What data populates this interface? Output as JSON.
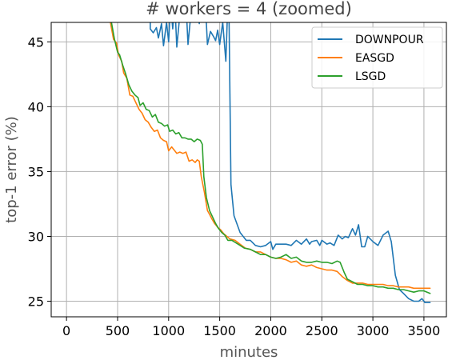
{
  "chart_data": {
    "type": "line",
    "title": "# workers = 4 (zoomed)",
    "xlabel": "minutes",
    "ylabel": "top-1 error (%)",
    "xlim": [
      -150,
      3720
    ],
    "ylim": [
      23.8,
      46.5
    ],
    "xticks": [
      0,
      500,
      1000,
      1500,
      2000,
      2500,
      3000,
      3500
    ],
    "yticks": [
      25,
      30,
      35,
      40,
      45
    ],
    "grid": true,
    "legend": "top-right",
    "series": [
      {
        "name": "DOWNPOUR",
        "color": "#1f77b4",
        "points": [
          [
            400,
            47.0
          ],
          [
            420,
            46.8
          ],
          [
            440,
            46.5
          ],
          [
            440,
            50
          ],
          [
            820,
            50
          ],
          [
            820,
            46.0
          ],
          [
            850,
            45.7
          ],
          [
            880,
            46.1
          ],
          [
            900,
            45.3
          ],
          [
            930,
            46.4
          ],
          [
            950,
            44.7
          ],
          [
            980,
            46.5
          ],
          [
            1000,
            45.0
          ],
          [
            1020,
            48
          ],
          [
            1040,
            46.0
          ],
          [
            1060,
            48
          ],
          [
            1080,
            44.6
          ],
          [
            1100,
            46.3
          ],
          [
            1120,
            48
          ],
          [
            1170,
            48
          ],
          [
            1190,
            44.8
          ],
          [
            1210,
            46.5
          ],
          [
            1230,
            48
          ],
          [
            1280,
            48
          ],
          [
            1300,
            46.4
          ],
          [
            1320,
            48
          ],
          [
            1360,
            48
          ],
          [
            1380,
            44.8
          ],
          [
            1410,
            45.8
          ],
          [
            1440,
            45.4
          ],
          [
            1460,
            45.1
          ],
          [
            1480,
            45.9
          ],
          [
            1500,
            44.8
          ],
          [
            1530,
            46.5
          ],
          [
            1560,
            43.5
          ],
          [
            1580,
            48
          ],
          [
            1590,
            48
          ],
          [
            1600,
            41.0
          ],
          [
            1610,
            34.0
          ],
          [
            1640,
            31.6
          ],
          [
            1700,
            30.3
          ],
          [
            1760,
            29.7
          ],
          [
            1800,
            29.7
          ],
          [
            1850,
            29.3
          ],
          [
            1900,
            29.2
          ],
          [
            1950,
            29.3
          ],
          [
            2000,
            29.6
          ],
          [
            2020,
            29.0
          ],
          [
            2050,
            29.4
          ],
          [
            2100,
            29.4
          ],
          [
            2150,
            29.4
          ],
          [
            2200,
            29.3
          ],
          [
            2250,
            29.7
          ],
          [
            2300,
            29.4
          ],
          [
            2350,
            29.8
          ],
          [
            2380,
            29.4
          ],
          [
            2400,
            29.6
          ],
          [
            2450,
            29.7
          ],
          [
            2480,
            29.3
          ],
          [
            2500,
            29.7
          ],
          [
            2550,
            29.4
          ],
          [
            2580,
            29.5
          ],
          [
            2620,
            29.3
          ],
          [
            2660,
            30.1
          ],
          [
            2700,
            29.8
          ],
          [
            2730,
            30.0
          ],
          [
            2760,
            29.9
          ],
          [
            2800,
            30.6
          ],
          [
            2830,
            30.1
          ],
          [
            2860,
            30.9
          ],
          [
            2890,
            29.2
          ],
          [
            2920,
            29.2
          ],
          [
            2950,
            30.0
          ],
          [
            3000,
            29.6
          ],
          [
            3050,
            29.3
          ],
          [
            3100,
            30.1
          ],
          [
            3150,
            30.4
          ],
          [
            3180,
            29.6
          ],
          [
            3220,
            27.0
          ],
          [
            3260,
            25.9
          ],
          [
            3300,
            25.6
          ],
          [
            3350,
            25.2
          ],
          [
            3400,
            25.0
          ],
          [
            3450,
            25.0
          ],
          [
            3480,
            25.2
          ],
          [
            3510,
            24.9
          ],
          [
            3560,
            24.9
          ]
        ]
      },
      {
        "name": "EASGD",
        "color": "#ff7f0e",
        "points": [
          [
            400,
            47.0
          ],
          [
            430,
            46.5
          ],
          [
            460,
            45.2
          ],
          [
            490,
            44.9
          ],
          [
            510,
            44.0
          ],
          [
            540,
            43.5
          ],
          [
            560,
            42.6
          ],
          [
            590,
            42.2
          ],
          [
            620,
            40.9
          ],
          [
            650,
            40.8
          ],
          [
            680,
            40.3
          ],
          [
            710,
            39.8
          ],
          [
            740,
            39.5
          ],
          [
            770,
            39.0
          ],
          [
            800,
            38.8
          ],
          [
            830,
            38.4
          ],
          [
            860,
            38.1
          ],
          [
            890,
            38.2
          ],
          [
            920,
            37.6
          ],
          [
            950,
            37.4
          ],
          [
            980,
            37.3
          ],
          [
            1000,
            36.6
          ],
          [
            1030,
            36.9
          ],
          [
            1060,
            36.6
          ],
          [
            1080,
            36.4
          ],
          [
            1110,
            36.5
          ],
          [
            1140,
            36.4
          ],
          [
            1170,
            36.5
          ],
          [
            1200,
            35.8
          ],
          [
            1230,
            35.9
          ],
          [
            1260,
            35.7
          ],
          [
            1280,
            35.9
          ],
          [
            1300,
            35.8
          ],
          [
            1320,
            34.6
          ],
          [
            1350,
            33.4
          ],
          [
            1380,
            32.0
          ],
          [
            1400,
            31.7
          ],
          [
            1420,
            31.4
          ],
          [
            1450,
            31.0
          ],
          [
            1480,
            30.7
          ],
          [
            1510,
            30.5
          ],
          [
            1540,
            30.2
          ],
          [
            1570,
            30.0
          ],
          [
            1600,
            29.8
          ],
          [
            1650,
            29.7
          ],
          [
            1700,
            29.4
          ],
          [
            1750,
            29.1
          ],
          [
            1800,
            29.0
          ],
          [
            1850,
            28.8
          ],
          [
            1900,
            28.8
          ],
          [
            1950,
            28.6
          ],
          [
            2000,
            28.4
          ],
          [
            2050,
            28.3
          ],
          [
            2100,
            28.3
          ],
          [
            2150,
            28.2
          ],
          [
            2200,
            28.0
          ],
          [
            2250,
            28.1
          ],
          [
            2300,
            27.8
          ],
          [
            2350,
            27.7
          ],
          [
            2400,
            27.8
          ],
          [
            2450,
            27.6
          ],
          [
            2500,
            27.5
          ],
          [
            2550,
            27.4
          ],
          [
            2600,
            27.4
          ],
          [
            2650,
            27.3
          ],
          [
            2700,
            26.9
          ],
          [
            2750,
            26.6
          ],
          [
            2800,
            26.4
          ],
          [
            2850,
            26.4
          ],
          [
            2900,
            26.4
          ],
          [
            2950,
            26.3
          ],
          [
            3000,
            26.3
          ],
          [
            3050,
            26.3
          ],
          [
            3100,
            26.3
          ],
          [
            3150,
            26.2
          ],
          [
            3200,
            26.2
          ],
          [
            3250,
            26.1
          ],
          [
            3300,
            26.1
          ],
          [
            3350,
            26.1
          ],
          [
            3400,
            26.0
          ],
          [
            3450,
            26.0
          ],
          [
            3500,
            26.0
          ],
          [
            3560,
            26.0
          ]
        ]
      },
      {
        "name": "LSGD",
        "color": "#2ca02c",
        "points": [
          [
            400,
            47.0
          ],
          [
            440,
            46.5
          ],
          [
            470,
            45.2
          ],
          [
            500,
            44.2
          ],
          [
            520,
            44.0
          ],
          [
            550,
            43.2
          ],
          [
            580,
            42.5
          ],
          [
            610,
            41.7
          ],
          [
            640,
            41.2
          ],
          [
            670,
            40.9
          ],
          [
            700,
            40.7
          ],
          [
            720,
            40.1
          ],
          [
            750,
            40.3
          ],
          [
            780,
            39.8
          ],
          [
            810,
            39.7
          ],
          [
            840,
            39.2
          ],
          [
            870,
            39.4
          ],
          [
            900,
            38.8
          ],
          [
            930,
            38.7
          ],
          [
            960,
            38.5
          ],
          [
            990,
            38.6
          ],
          [
            1010,
            38.1
          ],
          [
            1040,
            38.2
          ],
          [
            1070,
            37.9
          ],
          [
            1100,
            38.0
          ],
          [
            1130,
            37.6
          ],
          [
            1160,
            37.6
          ],
          [
            1190,
            37.5
          ],
          [
            1220,
            37.5
          ],
          [
            1250,
            37.3
          ],
          [
            1280,
            37.5
          ],
          [
            1310,
            37.4
          ],
          [
            1330,
            37.1
          ],
          [
            1345,
            34.6
          ],
          [
            1370,
            33.0
          ],
          [
            1400,
            32.0
          ],
          [
            1430,
            31.5
          ],
          [
            1460,
            31.0
          ],
          [
            1490,
            30.6
          ],
          [
            1520,
            30.3
          ],
          [
            1550,
            30.1
          ],
          [
            1580,
            29.7
          ],
          [
            1620,
            29.7
          ],
          [
            1680,
            29.4
          ],
          [
            1740,
            29.1
          ],
          [
            1800,
            29.0
          ],
          [
            1850,
            28.8
          ],
          [
            1900,
            28.6
          ],
          [
            1950,
            28.6
          ],
          [
            2000,
            28.4
          ],
          [
            2050,
            28.3
          ],
          [
            2100,
            28.4
          ],
          [
            2150,
            28.6
          ],
          [
            2200,
            28.3
          ],
          [
            2250,
            28.4
          ],
          [
            2300,
            28.1
          ],
          [
            2350,
            28.0
          ],
          [
            2400,
            28.0
          ],
          [
            2450,
            28.1
          ],
          [
            2500,
            28.0
          ],
          [
            2550,
            28.0
          ],
          [
            2600,
            27.9
          ],
          [
            2650,
            28.1
          ],
          [
            2680,
            28.0
          ],
          [
            2720,
            27.2
          ],
          [
            2750,
            26.7
          ],
          [
            2800,
            26.5
          ],
          [
            2850,
            26.3
          ],
          [
            2900,
            26.3
          ],
          [
            2950,
            26.2
          ],
          [
            3000,
            26.2
          ],
          [
            3050,
            26.1
          ],
          [
            3100,
            26.1
          ],
          [
            3150,
            26.0
          ],
          [
            3200,
            26.0
          ],
          [
            3250,
            25.9
          ],
          [
            3300,
            25.9
          ],
          [
            3350,
            25.8
          ],
          [
            3400,
            25.7
          ],
          [
            3450,
            25.8
          ],
          [
            3500,
            25.8
          ],
          [
            3560,
            25.6
          ]
        ]
      }
    ]
  }
}
